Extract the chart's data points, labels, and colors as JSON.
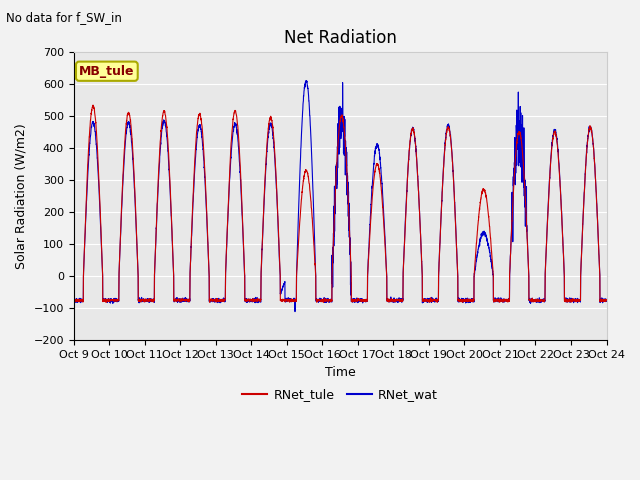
{
  "title": "Net Radiation",
  "top_left_text": "No data for f_SW_in",
  "ylabel": "Solar Radiation (W/m2)",
  "xlabel": "Time",
  "ylim": [
    -200,
    700
  ],
  "yticks": [
    -200,
    -100,
    0,
    100,
    200,
    300,
    400,
    500,
    600,
    700
  ],
  "plot_bg": "#e8e8e8",
  "fig_bg": "#f2f2f2",
  "line1_color": "#cc0000",
  "line2_color": "#0000cc",
  "line1_label": "RNet_tule",
  "line2_label": "RNet_wat",
  "box_label": "MB_tule",
  "box_facecolor": "#ffff99",
  "box_edgecolor": "#aaaa00",
  "title_fontsize": 12,
  "label_fontsize": 9,
  "tick_fontsize": 8,
  "n_days": 15,
  "start_day": 9,
  "night_base": -75,
  "sunrise": 6.5,
  "sunset": 19.5,
  "day_peaks_tule": [
    530,
    510,
    515,
    505,
    515,
    495,
    330,
    500,
    350,
    460,
    465,
    270,
    450,
    450,
    465
  ],
  "day_peaks_wat": [
    480,
    480,
    485,
    470,
    475,
    475,
    610,
    480,
    410,
    460,
    470,
    135,
    465,
    455,
    465
  ],
  "pts_per_day": 288
}
